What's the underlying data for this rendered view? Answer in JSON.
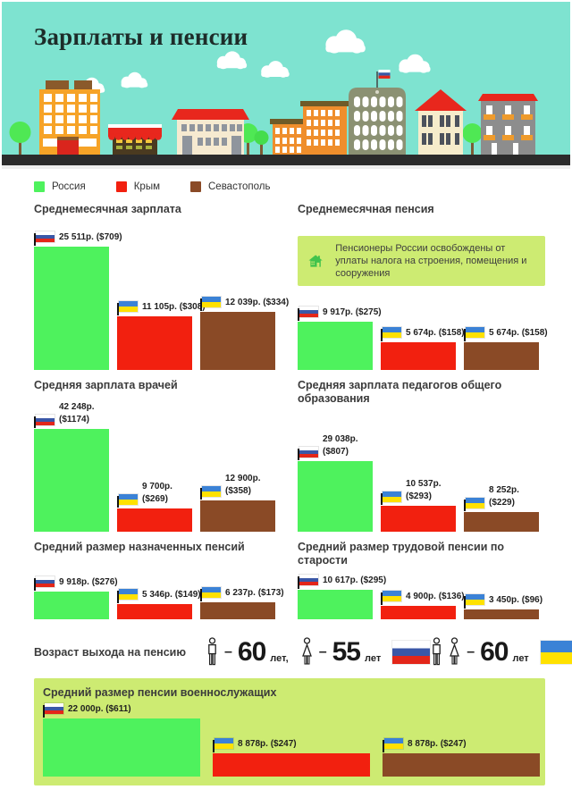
{
  "header": {
    "title": "Зарплаты и пенсии"
  },
  "legend": {
    "items": [
      {
        "label": "Россия"
      },
      {
        "label": "Крым"
      },
      {
        "label": "Севастополь"
      }
    ]
  },
  "note": {
    "text": "Пенсионеры России освобождены от уплаты налога на строения, помещения и сооружения"
  },
  "chart_data": [
    {
      "type": "bar",
      "title": "Среднемесячная зарплата",
      "categories": [
        "Россия",
        "Крым",
        "Севастополь"
      ],
      "values": [
        25511,
        11105,
        12039
      ],
      "bars": [
        {
          "category": "Россия",
          "value": 25511,
          "rub": "25 511р.",
          "usd": "($709)",
          "flag": "ru"
        },
        {
          "category": "Крым",
          "value": 11105,
          "rub": "11 105р.",
          "usd": "($308)",
          "flag": "ua"
        },
        {
          "category": "Севастополь",
          "value": 12039,
          "rub": "12 039р.",
          "usd": "($334)",
          "flag": "ua"
        }
      ]
    },
    {
      "type": "bar",
      "title": "Среднемесячная пенсия",
      "categories": [
        "Россия",
        "Крым",
        "Севастополь"
      ],
      "values": [
        9917,
        5674,
        5674
      ],
      "bars": [
        {
          "category": "Россия",
          "value": 9917,
          "rub": "9 917р.",
          "usd": "($275)",
          "flag": "ru"
        },
        {
          "category": "Крым",
          "value": 5674,
          "rub": "5 674р.",
          "usd": "($158)",
          "flag": "ua"
        },
        {
          "category": "Севастополь",
          "value": 5674,
          "rub": "5 674р.",
          "usd": "($158)",
          "flag": "ua"
        }
      ]
    },
    {
      "type": "bar",
      "title": "Средняя зарплата врачей",
      "categories": [
        "Россия",
        "Крым",
        "Севастополь"
      ],
      "values": [
        42248,
        9700,
        12900
      ],
      "bars": [
        {
          "category": "Россия",
          "value": 42248,
          "rub": "42 248р.",
          "usd": "($1174)",
          "flag": "ru"
        },
        {
          "category": "Крым",
          "value": 9700,
          "rub": "9 700р.",
          "usd": "($269)",
          "flag": "ua"
        },
        {
          "category": "Севастополь",
          "value": 12900,
          "rub": "12 900р.",
          "usd": "($358)",
          "flag": "ua"
        }
      ]
    },
    {
      "type": "bar",
      "title": "Средняя зарплата педагогов общего образования",
      "categories": [
        "Россия",
        "Крым",
        "Севастополь"
      ],
      "values": [
        29038,
        10537,
        8252
      ],
      "bars": [
        {
          "category": "Россия",
          "value": 29038,
          "rub": "29 038р.",
          "usd": "($807)",
          "flag": "ru"
        },
        {
          "category": "Крым",
          "value": 10537,
          "rub": "10 537р.",
          "usd": "($293)",
          "flag": "ua"
        },
        {
          "category": "Севастополь",
          "value": 8252,
          "rub": "8 252р.",
          "usd": "($229)",
          "flag": "ua"
        }
      ]
    },
    {
      "type": "bar",
      "title": "Средний размер назначенных пенсий",
      "categories": [
        "Россия",
        "Крым",
        "Севастополь"
      ],
      "values": [
        9918,
        5346,
        6237
      ],
      "bars": [
        {
          "category": "Россия",
          "value": 9918,
          "rub": "9 918р.",
          "usd": "($276)",
          "flag": "ru"
        },
        {
          "category": "Крым",
          "value": 5346,
          "rub": "5 346р.",
          "usd": "($149)",
          "flag": "ua"
        },
        {
          "category": "Севастополь",
          "value": 6237,
          "rub": "6 237р.",
          "usd": "($173)",
          "flag": "ua"
        }
      ]
    },
    {
      "type": "bar",
      "title": "Средний размер трудовой пенсии по старости",
      "categories": [
        "Россия",
        "Крым",
        "Севастополь"
      ],
      "values": [
        10617,
        4900,
        3450
      ],
      "bars": [
        {
          "category": "Россия",
          "value": 10617,
          "rub": "10 617р.",
          "usd": "($295)",
          "flag": "ru"
        },
        {
          "category": "Крым",
          "value": 4900,
          "rub": "4 900р.",
          "usd": "($136)",
          "flag": "ua"
        },
        {
          "category": "Севастополь",
          "value": 3450,
          "rub": "3 450р.",
          "usd": "($96)",
          "flag": "ua"
        }
      ]
    },
    {
      "type": "bar",
      "title": "Средний размер пенсии военнослужащих",
      "categories": [
        "Россия",
        "Крым",
        "Севастополь"
      ],
      "values": [
        22000,
        8878,
        8878
      ],
      "bars": [
        {
          "category": "Россия",
          "value": 22000,
          "rub": "22 000р.",
          "usd": "($611)",
          "flag": "ru"
        },
        {
          "category": "Крым",
          "value": 8878,
          "rub": "8 878р.",
          "usd": "($247)",
          "flag": "ua"
        },
        {
          "category": "Севастополь",
          "value": 8878,
          "rub": "8 878р.",
          "usd": "($247)",
          "flag": "ua"
        }
      ]
    }
  ],
  "retirement": {
    "title": "Возраст выхода на пенсию",
    "groups": [
      {
        "flag": "ru",
        "entries": [
          {
            "person": "man",
            "age": "60",
            "unit": "лет,"
          },
          {
            "person": "woman",
            "age": "55",
            "unit": "лет"
          }
        ]
      },
      {
        "flag": "ua",
        "entries": [
          {
            "person": "man-woman",
            "age": "60",
            "unit": "лет"
          }
        ]
      }
    ]
  },
  "colors": {
    "russia": "#4ef25d",
    "crimea": "#f2200f",
    "sevastopol": "#8a4a26",
    "header_background": "#7ee3d0",
    "highlight_box": "#cdeb72",
    "note_box": "#cdeb72",
    "note_icon": "#41c34c",
    "road": "#2b2b2b",
    "flag_ru_blue": "#3a57a7",
    "flag_ru_red": "#e32619",
    "flag_ua_blue": "#3b82d6",
    "flag_ua_yellow": "#ffe100"
  }
}
